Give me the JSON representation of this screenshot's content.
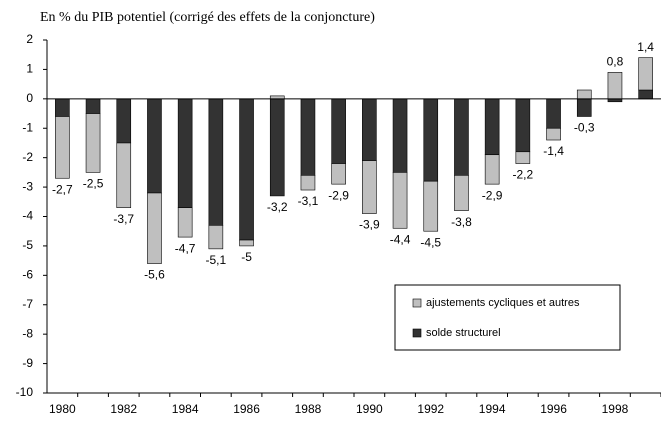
{
  "chart_data": {
    "type": "bar",
    "stacked": true,
    "title": "En % du PIB potentiel (corrigé des effets de la conjoncture)",
    "categories": [
      "1980",
      null,
      "1982",
      null,
      "1984",
      null,
      "1986",
      null,
      "1988",
      null,
      "1990",
      null,
      "1992",
      null,
      "1994",
      null,
      "1996",
      null,
      "1998",
      null
    ],
    "series": [
      {
        "name": "solde structurel",
        "color": "#333333",
        "values": [
          -0.6,
          -0.5,
          -1.5,
          -3.2,
          -3.7,
          -4.3,
          -4.8,
          -3.3,
          -2.6,
          -2.2,
          -2.1,
          -2.5,
          -2.8,
          -2.6,
          -1.9,
          -1.8,
          -1.0,
          -0.6,
          -0.1,
          0.3
        ]
      },
      {
        "name": "ajustements cycliques et autres",
        "color": "#bfbfbf",
        "values": [
          -2.1,
          -2.0,
          -2.2,
          -2.4,
          -1.0,
          -0.8,
          -0.2,
          0.1,
          -0.5,
          -0.7,
          -1.8,
          -1.9,
          -1.7,
          -1.2,
          -1.0,
          -0.4,
          -0.4,
          0.3,
          0.9,
          1.1
        ]
      }
    ],
    "totals": {
      "values": [
        -2.7,
        -2.5,
        -3.7,
        -5.6,
        -4.7,
        -5.1,
        -5,
        -3.2,
        -3.1,
        -2.9,
        -3.9,
        -4.4,
        -4.5,
        -3.8,
        -2.9,
        -2.2,
        -1.4,
        -0.3,
        0.8,
        1.4
      ],
      "value_labels": [
        "-2,7",
        "-2,5",
        "-3,7",
        "-5,6",
        "-4,7",
        "-5,1",
        "-5",
        "-3,2",
        "-3,1",
        "-2,9",
        "-3,9",
        "-4,4",
        "-4,5",
        "-3,8",
        "-2,9",
        "-2,2",
        "-1,4",
        "-0,3",
        "0,8",
        "1,4"
      ]
    },
    "ylim": [
      -10,
      2
    ],
    "yticks": [
      -10,
      -9,
      -8,
      -7,
      -6,
      -5,
      -4,
      -3,
      -2,
      -1,
      0,
      1,
      2
    ],
    "legend": "lower right"
  }
}
